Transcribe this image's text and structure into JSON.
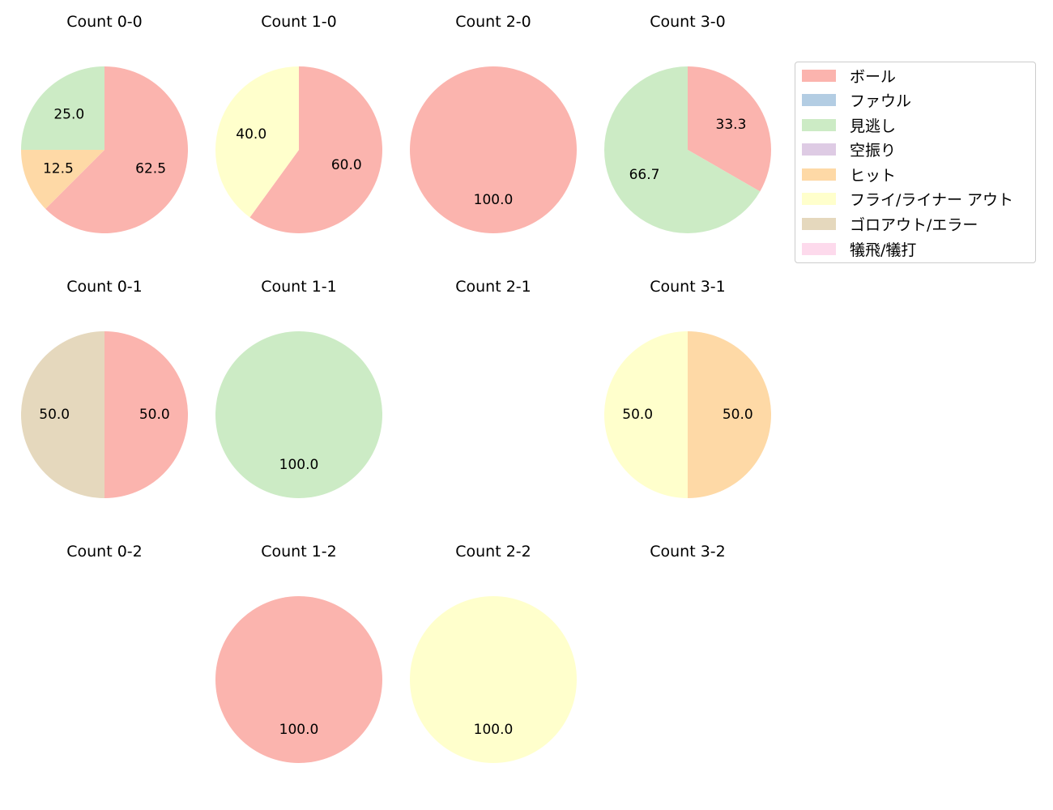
{
  "chart_data": {
    "type": "pie",
    "legend": {
      "position": "upper right",
      "entries": [
        {
          "label": "ボール",
          "color": "#fbb4ae"
        },
        {
          "label": "ファウル",
          "color": "#b3cde3"
        },
        {
          "label": "見逃し",
          "color": "#ccebc5"
        },
        {
          "label": "空振り",
          "color": "#decbe4"
        },
        {
          "label": "ヒット",
          "color": "#fed9a6"
        },
        {
          "label": "フライ/ライナー アウト",
          "color": "#ffffcc"
        },
        {
          "label": "ゴロアウト/エラー",
          "color": "#e5d8bd"
        },
        {
          "label": "犠飛/犠打",
          "color": "#fddaec"
        }
      ]
    },
    "pies": [
      {
        "title": "Count 0-0",
        "row": 0,
        "col": 0,
        "slices": [
          {
            "category": "ボール",
            "value": 62.5
          },
          {
            "category": "ヒット",
            "value": 12.5
          },
          {
            "category": "見逃し",
            "value": 25.0
          }
        ]
      },
      {
        "title": "Count 1-0",
        "row": 0,
        "col": 1,
        "slices": [
          {
            "category": "ボール",
            "value": 60.0
          },
          {
            "category": "フライ/ライナー アウト",
            "value": 40.0
          }
        ]
      },
      {
        "title": "Count 2-0",
        "row": 0,
        "col": 2,
        "slices": [
          {
            "category": "ボール",
            "value": 100.0
          }
        ]
      },
      {
        "title": "Count 3-0",
        "row": 0,
        "col": 3,
        "slices": [
          {
            "category": "ボール",
            "value": 33.3
          },
          {
            "category": "見逃し",
            "value": 66.7
          }
        ]
      },
      {
        "title": "Count 0-1",
        "row": 1,
        "col": 0,
        "slices": [
          {
            "category": "ボール",
            "value": 50.0
          },
          {
            "category": "ゴロアウト/エラー",
            "value": 50.0
          }
        ]
      },
      {
        "title": "Count 1-1",
        "row": 1,
        "col": 1,
        "slices": [
          {
            "category": "見逃し",
            "value": 100.0
          }
        ]
      },
      {
        "title": "Count 2-1",
        "row": 1,
        "col": 2,
        "slices": []
      },
      {
        "title": "Count 3-1",
        "row": 1,
        "col": 3,
        "slices": [
          {
            "category": "ヒット",
            "value": 50.0
          },
          {
            "category": "フライ/ライナー アウト",
            "value": 50.0
          }
        ]
      },
      {
        "title": "Count 0-2",
        "row": 2,
        "col": 0,
        "slices": []
      },
      {
        "title": "Count 1-2",
        "row": 2,
        "col": 1,
        "slices": [
          {
            "category": "ボール",
            "value": 100.0
          }
        ]
      },
      {
        "title": "Count 2-2",
        "row": 2,
        "col": 2,
        "slices": [
          {
            "category": "フライ/ライナー アウト",
            "value": 100.0
          }
        ]
      },
      {
        "title": "Count 3-2",
        "row": 2,
        "col": 3,
        "slices": []
      }
    ]
  }
}
